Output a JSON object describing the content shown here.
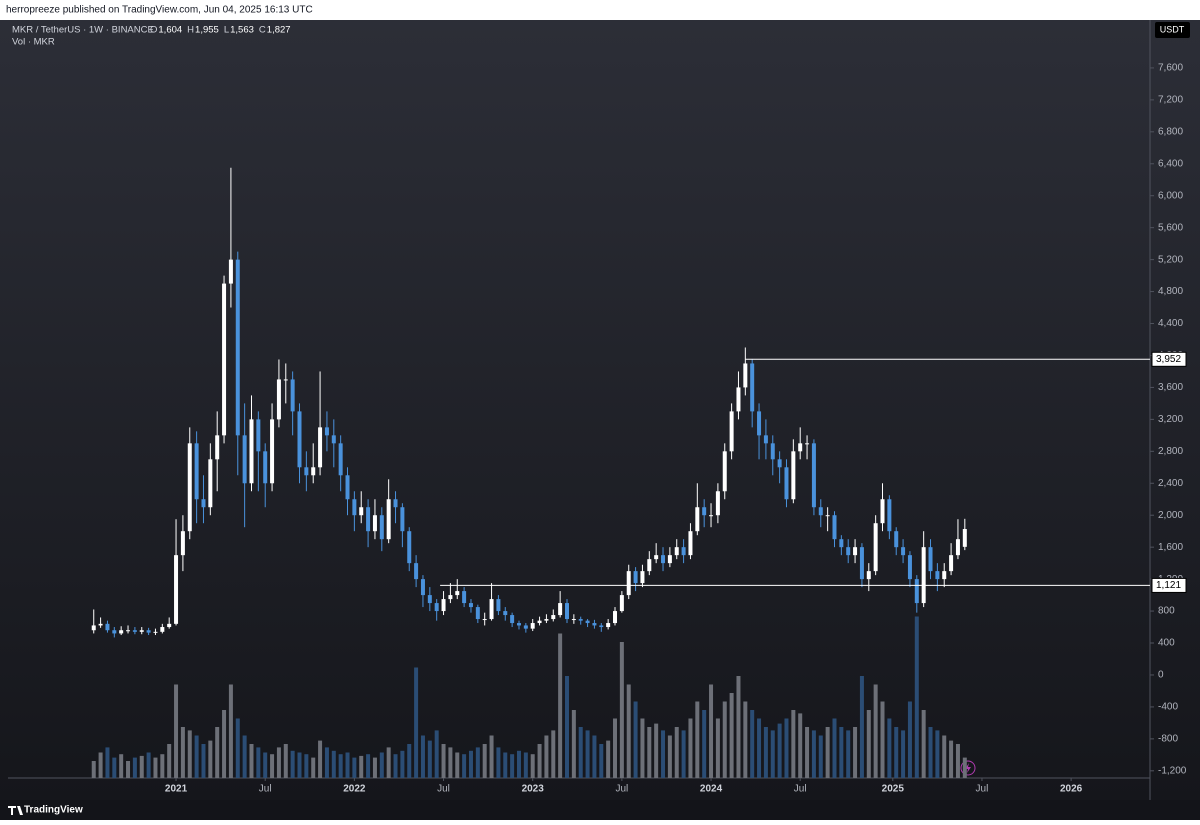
{
  "header": {
    "published": "herropreeze published on TradingView.com, Jun 04, 2025 16:13 UTC",
    "symbol": "MKR / TetherUS · 1W · BINANCE",
    "ohlc": [
      {
        "key": "O",
        "text": "1,604"
      },
      {
        "key": "H",
        "text": "1,955"
      },
      {
        "key": "L",
        "text": "1,563"
      },
      {
        "key": "C",
        "text": "1,827"
      }
    ],
    "volume_label": "Vol · MKR",
    "currency": "USDT",
    "brand": "TradingView"
  },
  "chart_data": {
    "type": "candlestick",
    "grid": false,
    "up_color": "#ffffff",
    "down_color": "#4a92dc",
    "volume_up_color": "#6d7078",
    "volume_down_color": "#2b4d75",
    "x": [
      0,
      2,
      4,
      6,
      8,
      10,
      12,
      14,
      16,
      18,
      20,
      22,
      24,
      26,
      28,
      30,
      32,
      34,
      36,
      38,
      40,
      42,
      44,
      46,
      48,
      50,
      52,
      54,
      56,
      58,
      60,
      62,
      64,
      66,
      68,
      70,
      72,
      74,
      76,
      78,
      80,
      82,
      84,
      86,
      88,
      90,
      92,
      94,
      96,
      98,
      100,
      102,
      104,
      106,
      108,
      110,
      112,
      114,
      116,
      118,
      120,
      122,
      124,
      126,
      128,
      130,
      132,
      134,
      136,
      138,
      140,
      142,
      144,
      146,
      148,
      150,
      152,
      154,
      156,
      158,
      160,
      162,
      164,
      166,
      168,
      170,
      172,
      174,
      176,
      178,
      180,
      182,
      184,
      186,
      188,
      190,
      192,
      194,
      196,
      198,
      200,
      202,
      204,
      206,
      208,
      210,
      212,
      214,
      216,
      218,
      220,
      222,
      224,
      226,
      228,
      230,
      232,
      234,
      236,
      238,
      240,
      242,
      244,
      246,
      248,
      250,
      252,
      254
    ],
    "open": [
      560,
      620,
      640,
      560,
      520,
      560,
      560,
      540,
      560,
      530,
      540,
      600,
      640,
      1500,
      1800,
      2900,
      2200,
      2100,
      2700,
      3000,
      4900,
      5200,
      3000,
      2400,
      3200,
      2800,
      2400,
      3200,
      3700,
      3700,
      3300,
      2600,
      2500,
      2600,
      3100,
      3000,
      2900,
      2500,
      2200,
      2000,
      2100,
      1800,
      2000,
      1700,
      2200,
      2100,
      1800,
      1400,
      1200,
      1000,
      900,
      800,
      950,
      1000,
      1050,
      900,
      850,
      700,
      700,
      950,
      800,
      750,
      650,
      620,
      580,
      650,
      680,
      700,
      750,
      900,
      700,
      700,
      680,
      650,
      620,
      600,
      650,
      800,
      1000,
      1300,
      1150,
      1300,
      1450,
      1500,
      1400,
      1500,
      1600,
      1500,
      1800,
      2100,
      2000,
      2000,
      2300,
      2800,
      3300,
      3600,
      3900,
      3300,
      3000,
      2900,
      2700,
      2600,
      2200,
      2800,
      2900,
      2900,
      2100,
      2000,
      2000,
      1700,
      1600,
      1500,
      1600,
      1200,
      1300,
      1900,
      2200,
      1800,
      1600,
      1500,
      1200,
      900,
      1600,
      1300,
      1200,
      1300,
      1500,
      1604
    ],
    "high": [
      820,
      720,
      680,
      600,
      610,
      620,
      600,
      600,
      590,
      580,
      640,
      720,
      1950,
      2000,
      3100,
      3050,
      2500,
      2900,
      3300,
      5000,
      6350,
      5300,
      3400,
      3500,
      3300,
      2900,
      3400,
      3950,
      3900,
      3800,
      3400,
      2800,
      2900,
      3800,
      3300,
      3200,
      3000,
      2600,
      2300,
      2300,
      2200,
      2200,
      2100,
      2450,
      2300,
      2150,
      1850,
      1500,
      1250,
      1100,
      950,
      1050,
      1150,
      1200,
      1100,
      950,
      880,
      780,
      1150,
      1000,
      850,
      780,
      680,
      650,
      700,
      730,
      760,
      820,
      1050,
      950,
      760,
      730,
      700,
      690,
      650,
      700,
      850,
      1050,
      1380,
      1350,
      1380,
      1550,
      1650,
      1600,
      1600,
      1700,
      1700,
      1900,
      2400,
      2200,
      2150,
      2400,
      2900,
      3400,
      3800,
      4100,
      3950,
      3400,
      3200,
      3000,
      2800,
      2700,
      2950,
      3100,
      3000,
      2950,
      2200,
      2100,
      2050,
      1750,
      1700,
      1700,
      1650,
      1400,
      2000,
      2400,
      2250,
      1850,
      1700,
      1550,
      1250,
      1800,
      1700,
      1400,
      1400,
      1650,
      1950,
      1955
    ],
    "low": [
      520,
      590,
      530,
      470,
      500,
      520,
      510,
      510,
      500,
      500,
      520,
      580,
      620,
      1300,
      1700,
      1900,
      1900,
      2000,
      2300,
      2900,
      4600,
      2500,
      1850,
      2300,
      2300,
      2100,
      2300,
      3100,
      3400,
      3000,
      2400,
      2300,
      2400,
      2500,
      2800,
      2600,
      2300,
      2000,
      1800,
      1900,
      1600,
      1700,
      1550,
      1650,
      1900,
      1600,
      1300,
      1100,
      850,
      800,
      680,
      750,
      900,
      950,
      850,
      780,
      650,
      620,
      680,
      750,
      680,
      600,
      570,
      530,
      550,
      620,
      650,
      670,
      720,
      650,
      640,
      630,
      600,
      580,
      540,
      570,
      620,
      780,
      950,
      1050,
      1100,
      1250,
      1400,
      1300,
      1350,
      1450,
      1400,
      1450,
      1750,
      1850,
      1850,
      1900,
      2200,
      2700,
      3200,
      3500,
      3100,
      2700,
      2700,
      2500,
      2400,
      2100,
      2150,
      2700,
      2700,
      2000,
      1850,
      1800,
      1600,
      1500,
      1400,
      1400,
      1100,
      1050,
      1250,
      1800,
      1700,
      1500,
      1400,
      1100,
      780,
      850,
      1200,
      1050,
      1100,
      1250,
      1450,
      1563
    ],
    "close": [
      620,
      640,
      560,
      520,
      560,
      560,
      540,
      560,
      530,
      540,
      600,
      640,
      1500,
      1800,
      2900,
      2200,
      2100,
      2700,
      3000,
      4900,
      5200,
      3000,
      2400,
      3200,
      2800,
      2400,
      3200,
      3700,
      3700,
      3300,
      2600,
      2500,
      2600,
      3100,
      3000,
      2900,
      2500,
      2200,
      2000,
      2100,
      1800,
      2000,
      1700,
      2200,
      2100,
      1800,
      1400,
      1200,
      1000,
      900,
      800,
      950,
      1000,
      1050,
      900,
      850,
      700,
      700,
      950,
      800,
      750,
      650,
      620,
      580,
      650,
      680,
      700,
      750,
      900,
      700,
      700,
      680,
      650,
      620,
      600,
      650,
      800,
      1000,
      1300,
      1150,
      1300,
      1450,
      1500,
      1400,
      1500,
      1600,
      1500,
      1800,
      2100,
      2000,
      2000,
      2300,
      2800,
      3300,
      3600,
      3900,
      3300,
      3000,
      2900,
      2700,
      2600,
      2200,
      2800,
      2900,
      2900,
      2100,
      2000,
      2000,
      1700,
      1600,
      1500,
      1600,
      1200,
      1300,
      1900,
      2200,
      1800,
      1600,
      1500,
      1200,
      900,
      1600,
      1300,
      1200,
      1300,
      1500,
      1700,
      1827
    ],
    "volume": [
      10,
      15,
      18,
      12,
      14,
      10,
      12,
      13,
      15,
      12,
      14,
      20,
      55,
      30,
      28,
      25,
      20,
      22,
      30,
      40,
      55,
      35,
      25,
      20,
      18,
      15,
      14,
      18,
      20,
      16,
      15,
      14,
      12,
      22,
      18,
      16,
      14,
      15,
      12,
      13,
      14,
      12,
      15,
      18,
      14,
      16,
      20,
      65,
      25,
      22,
      28,
      20,
      18,
      15,
      14,
      16,
      18,
      20,
      25,
      18,
      15,
      14,
      16,
      15,
      14,
      20,
      25,
      28,
      85,
      60,
      40,
      30,
      28,
      25,
      20,
      22,
      35,
      80,
      55,
      45,
      35,
      30,
      32,
      28,
      25,
      30,
      28,
      35,
      45,
      40,
      55,
      35,
      45,
      50,
      60,
      45,
      40,
      35,
      30,
      28,
      32,
      35,
      40,
      38,
      30,
      28,
      25,
      30,
      35,
      30,
      28,
      30,
      60,
      40,
      55,
      45,
      35,
      30,
      28,
      45,
      95,
      40,
      30,
      28,
      25,
      22,
      20,
      12
    ],
    "vlim": [
      0,
      100
    ],
    "xlim": [
      -25,
      308
    ],
    "xticks": [
      {
        "value": 24,
        "label": "2021"
      },
      {
        "value": 50,
        "label": "Jul"
      },
      {
        "value": 76,
        "label": "2022"
      },
      {
        "value": 102,
        "label": "Jul"
      },
      {
        "value": 128,
        "label": "2023"
      },
      {
        "value": 154,
        "label": "Jul"
      },
      {
        "value": 180,
        "label": "2024"
      },
      {
        "value": 206,
        "label": "Jul"
      },
      {
        "value": 233,
        "label": "2025"
      },
      {
        "value": 259,
        "label": "Jul"
      },
      {
        "value": 285,
        "label": "2026"
      }
    ],
    "ylim": [
      -1290,
      8200
    ],
    "yticks": [
      {
        "value": 7600,
        "label": "7,600"
      },
      {
        "value": 7200,
        "label": "7,200"
      },
      {
        "value": 6800,
        "label": "6,800"
      },
      {
        "value": 6400,
        "label": "6,400"
      },
      {
        "value": 6000,
        "label": "6,000"
      },
      {
        "value": 5600,
        "label": "5,600"
      },
      {
        "value": 5200,
        "label": "5,200"
      },
      {
        "value": 4800,
        "label": "4,800"
      },
      {
        "value": 4400,
        "label": "4,400"
      },
      {
        "value": 4000,
        "label": "4,000"
      },
      {
        "value": 3600,
        "label": "3,600"
      },
      {
        "value": 3200,
        "label": "3,200"
      },
      {
        "value": 2800,
        "label": "2,800"
      },
      {
        "value": 2400,
        "label": "2,400"
      },
      {
        "value": 2000,
        "label": "2,000"
      },
      {
        "value": 1600,
        "label": "1,600"
      },
      {
        "value": 1200,
        "label": "1,200"
      },
      800,
      400,
      0,
      -400,
      -800,
      {
        "value": -1200,
        "label": "-1,200"
      }
    ],
    "price_lines": [
      {
        "value": 3952,
        "label": "3,952",
        "start_x": 190
      },
      {
        "value": 1121,
        "label": "1,121",
        "start_x": 101
      }
    ]
  }
}
